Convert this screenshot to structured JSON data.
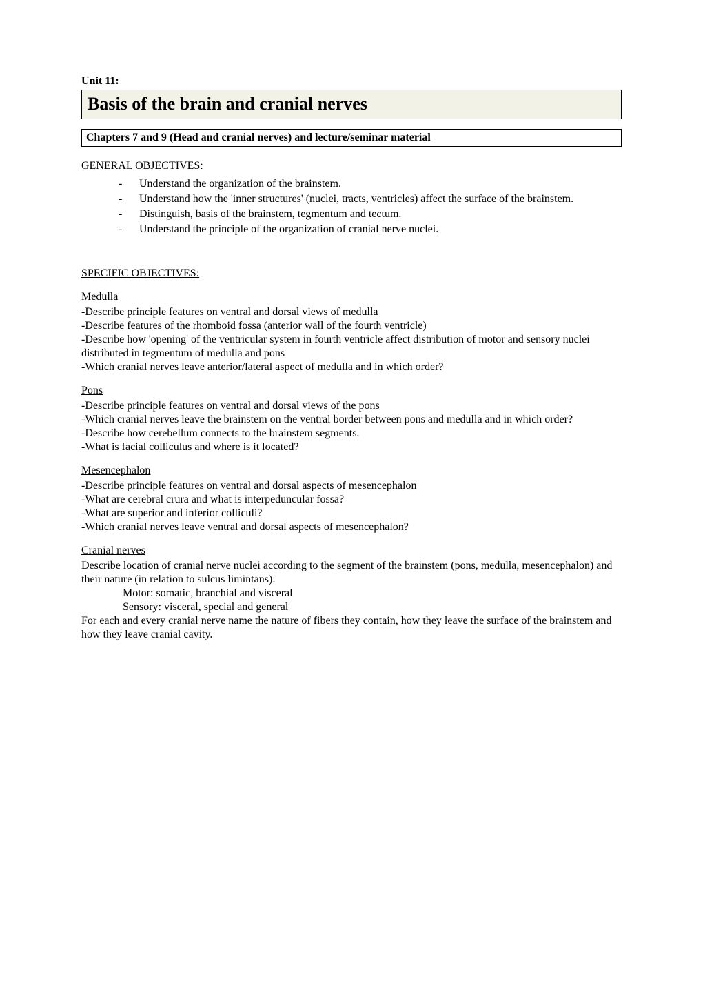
{
  "unit_label": "Unit 11:",
  "title": "Basis of the brain and cranial nerves",
  "chapter_ref": "Chapters 7 and 9 (Head and cranial nerves) and lecture/seminar material",
  "general_objectives_heading": "GENERAL OBJECTIVES:",
  "general_objectives": [
    "Understand the organization of the brainstem.",
    "Understand how the 'inner structures' (nuclei, tracts, ventricles) affect the surface of the brainstem.",
    "Distinguish, basis of the brainstem, tegmentum and tectum.",
    "Understand the principle of the organization of cranial nerve nuclei."
  ],
  "specific_objectives_heading": "SPECIFIC OBJECTIVES:",
  "sections": {
    "medulla": {
      "heading": "Medulla",
      "items": [
        "-Describe principle features on ventral and dorsal views of medulla",
        "-Describe features of the rhomboid fossa (anterior wall of the fourth ventricle)",
        "-Describe how 'opening' of the ventricular system in fourth ventricle affect distribution of motor and sensory nuclei distributed in tegmentum of medulla and pons",
        "-Which cranial nerves leave anterior/lateral aspect of medulla and in which order?"
      ]
    },
    "pons": {
      "heading": "Pons",
      "items": [
        "-Describe principle features on ventral and dorsal views of the pons",
        "-Which cranial nerves leave the brainstem on the ventral border between pons and medulla and in which order?",
        "-Describe how cerebellum connects to the brainstem segments.",
        "-What is facial colliculus and where is it located?"
      ]
    },
    "mesencephalon": {
      "heading": "Mesencephalon",
      "items": [
        "-Describe principle features on ventral and dorsal aspects of mesencephalon",
        "-What are cerebral crura and what is interpeduncular fossa?",
        "-What are superior and inferior colliculi?",
        "-Which cranial nerves leave ventral and dorsal aspects of mesencephalon?"
      ]
    },
    "cranial_nerves": {
      "heading": "Cranial nerves",
      "intro": "Describe location of cranial nerve nuclei according to the segment of the brainstem (pons, medulla, mesencephalon) and their nature (in relation to sulcus limintans):",
      "indented": [
        "Motor: somatic, branchial and visceral",
        "Sensory: visceral, special and general"
      ],
      "final_prefix": "For each and every cranial nerve name the ",
      "final_underlined": "nature of fibers they contain",
      "final_suffix": ", how they leave the surface of the brainstem and how they leave cranial cavity."
    }
  }
}
